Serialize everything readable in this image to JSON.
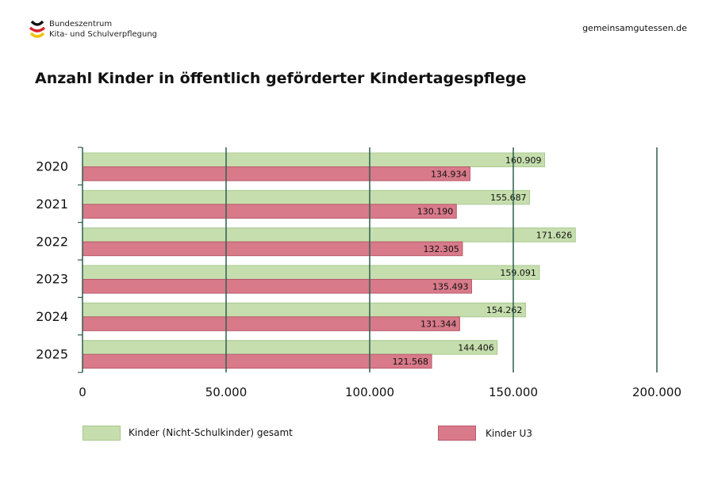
{
  "header": {
    "logo_line1": "Bundeszentrum",
    "logo_line2": "Kita- und Schulverpflegung",
    "website": "gemeinsamgutessen.de"
  },
  "chart_data": {
    "type": "bar",
    "orientation": "horizontal",
    "title": "Anzahl Kinder in öffentlich geförderter Kindertagespflege",
    "categories": [
      "2020",
      "2021",
      "2022",
      "2023",
      "2024",
      "2025"
    ],
    "series": [
      {
        "name": "Kinder (Nicht-Schulkinder) gesamt",
        "color": "#c6deae",
        "values": [
          160909,
          155687,
          171626,
          159091,
          154262,
          144406
        ],
        "labels": [
          "160.909",
          "155.687",
          "171.626",
          "159.091",
          "154.262",
          "144.406"
        ]
      },
      {
        "name": "Kinder U3",
        "color": "#d87a8a",
        "values": [
          134934,
          130190,
          132305,
          135493,
          131344,
          121568
        ],
        "labels": [
          "134.934",
          "130.190",
          "132.305",
          "135.493",
          "131.344",
          "121.568"
        ]
      }
    ],
    "xlim": [
      0,
      200000
    ],
    "xticks": [
      0,
      50000,
      100000,
      150000,
      200000
    ],
    "xtick_labels": [
      "0",
      "50.000",
      "100.000",
      "150.000",
      "200.000"
    ],
    "grid": true,
    "gridline_color": "#2f5f4f",
    "legend_position": "bottom"
  }
}
